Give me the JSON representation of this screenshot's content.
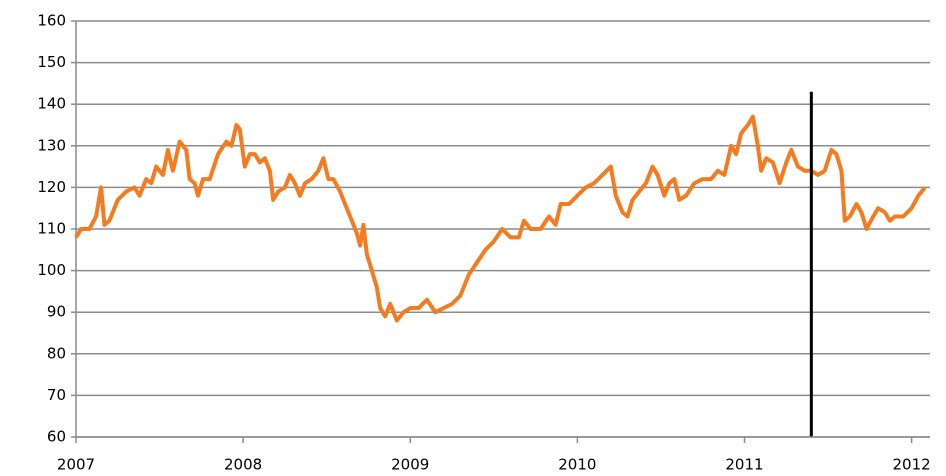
{
  "chart_data": {
    "type": "line",
    "x": [
      2007.0,
      2007.03,
      2007.08,
      2007.12,
      2007.15,
      2007.17,
      2007.2,
      2007.25,
      2007.3,
      2007.35,
      2007.38,
      2007.42,
      2007.45,
      2007.48,
      2007.52,
      2007.55,
      2007.58,
      2007.62,
      2007.66,
      2007.68,
      2007.71,
      2007.73,
      2007.76,
      2007.8,
      2007.85,
      2007.9,
      2007.93,
      2007.96,
      2007.98,
      2008.01,
      2008.04,
      2008.07,
      2008.1,
      2008.13,
      2008.16,
      2008.18,
      2008.21,
      2008.25,
      2008.28,
      2008.31,
      2008.34,
      2008.37,
      2008.41,
      2008.45,
      2008.48,
      2008.51,
      2008.54,
      2008.58,
      2008.62,
      2008.65,
      2008.68,
      2008.7,
      2008.72,
      2008.74,
      2008.77,
      2008.8,
      2008.82,
      2008.85,
      2008.88,
      2008.92,
      2008.96,
      2009.0,
      2009.05,
      2009.1,
      2009.15,
      2009.2,
      2009.25,
      2009.3,
      2009.35,
      2009.4,
      2009.45,
      2009.5,
      2009.55,
      2009.6,
      2009.65,
      2009.68,
      2009.72,
      2009.78,
      2009.83,
      2009.87,
      2009.9,
      2009.95,
      2010.0,
      2010.05,
      2010.1,
      2010.15,
      2010.2,
      2010.23,
      2010.27,
      2010.3,
      2010.33,
      2010.37,
      2010.41,
      2010.45,
      2010.48,
      2010.52,
      2010.55,
      2010.58,
      2010.61,
      2010.65,
      2010.7,
      2010.75,
      2010.8,
      2010.84,
      2010.88,
      2010.92,
      2010.95,
      2010.98,
      2011.02,
      2011.05,
      2011.08,
      2011.1,
      2011.13,
      2011.17,
      2011.21,
      2011.25,
      2011.28,
      2011.32,
      2011.36,
      2011.4,
      2011.44,
      2011.48,
      2011.52,
      2011.55,
      2011.58,
      2011.6,
      2011.63,
      2011.67,
      2011.7,
      2011.73,
      2011.77,
      2011.8,
      2011.84,
      2011.87,
      2011.9,
      2011.95,
      2012.0,
      2012.04,
      2012.08
    ],
    "series": [
      {
        "color": "#f47b20",
        "values": [
          108,
          110,
          110,
          113,
          120,
          111,
          112,
          117,
          119,
          120,
          118,
          122,
          121,
          125,
          123,
          129,
          124,
          131,
          129,
          122,
          121,
          118,
          122,
          122,
          128,
          131,
          130,
          135,
          134,
          125,
          128,
          128,
          126,
          127,
          124,
          117,
          119,
          120,
          123,
          121,
          118,
          121,
          122,
          124,
          127,
          122,
          122,
          119,
          115,
          112,
          109,
          106,
          111,
          104,
          100,
          96,
          91,
          89,
          92,
          88,
          90,
          91,
          91,
          93,
          90,
          91,
          92,
          94,
          99,
          102,
          105,
          107,
          110,
          108,
          108,
          112,
          110,
          110,
          113,
          111,
          116,
          116,
          118,
          120,
          121,
          123,
          125,
          118,
          114,
          113,
          117,
          119,
          121,
          125,
          123,
          118,
          121,
          122,
          117,
          118,
          121,
          122,
          122,
          124,
          123,
          130,
          128,
          133,
          135,
          137,
          130,
          124,
          127,
          126,
          121,
          126,
          129,
          125,
          124,
          124,
          123,
          124,
          129,
          128,
          124,
          112,
          113,
          116,
          114,
          110,
          113,
          115,
          114,
          112,
          113,
          113,
          115,
          118,
          120
        ]
      }
    ],
    "xlim": [
      2007,
      2012.11
    ],
    "xticks": [
      2007,
      2008,
      2009,
      2010,
      2011,
      2012
    ],
    "ylim": [
      60,
      160
    ],
    "yticks": [
      60,
      70,
      80,
      90,
      100,
      110,
      120,
      130,
      140,
      150,
      160
    ],
    "grid": true,
    "vertical_line": {
      "x": 2011.4,
      "top": 143,
      "color": "#000000"
    }
  }
}
